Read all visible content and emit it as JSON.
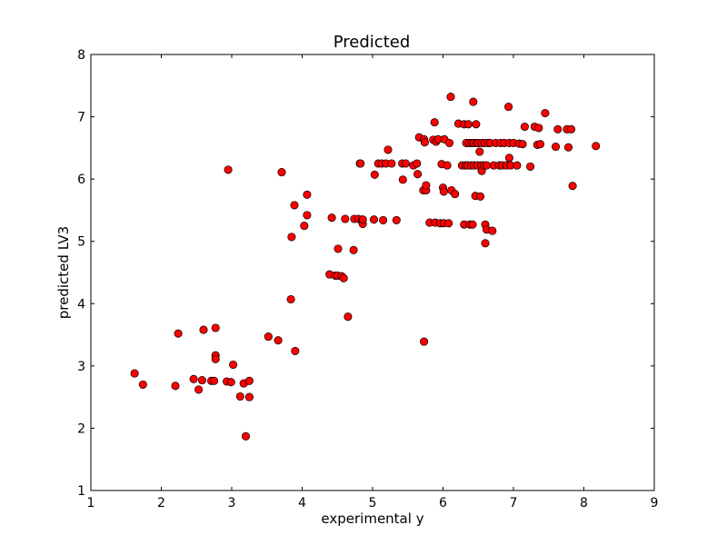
{
  "chart_data": {
    "type": "scatter",
    "title": "Predicted",
    "xlabel": "experimental y",
    "ylabel": "predicted LV3",
    "xlim": [
      1,
      9
    ],
    "ylim": [
      1,
      8
    ],
    "xticks": [
      "1",
      "2",
      "3",
      "4",
      "5",
      "6",
      "7",
      "8",
      "9"
    ],
    "yticks": [
      "1",
      "2",
      "3",
      "4",
      "5",
      "6",
      "7",
      "8"
    ],
    "grid": false,
    "marker_color": "#ff0000",
    "marker_edge": "#000000",
    "series": [
      {
        "points": [
          [
            1.62,
            2.88
          ],
          [
            1.74,
            2.7
          ],
          [
            2.2,
            2.68
          ],
          [
            2.24,
            3.52
          ],
          [
            2.46,
            2.79
          ],
          [
            2.53,
            2.62
          ],
          [
            2.58,
            2.77
          ],
          [
            2.6,
            3.58
          ],
          [
            2.71,
            2.76
          ],
          [
            2.75,
            2.76
          ],
          [
            2.77,
            3.61
          ],
          [
            2.77,
            3.17
          ],
          [
            2.77,
            3.11
          ],
          [
            2.93,
            2.75
          ],
          [
            2.95,
            6.15
          ],
          [
            2.99,
            2.74
          ],
          [
            3.02,
            3.02
          ],
          [
            3.12,
            2.51
          ],
          [
            3.17,
            2.72
          ],
          [
            3.2,
            1.87
          ],
          [
            3.25,
            2.76
          ],
          [
            3.25,
            2.5
          ],
          [
            3.52,
            3.47
          ],
          [
            3.66,
            3.41
          ],
          [
            3.71,
            6.11
          ],
          [
            3.84,
            4.07
          ],
          [
            3.85,
            5.07
          ],
          [
            3.89,
            5.58
          ],
          [
            3.9,
            3.24
          ],
          [
            4.03,
            5.25
          ],
          [
            4.07,
            5.75
          ],
          [
            4.07,
            5.42
          ],
          [
            4.39,
            4.47
          ],
          [
            4.42,
            5.38
          ],
          [
            4.47,
            4.45
          ],
          [
            4.5,
            4.45
          ],
          [
            4.51,
            4.88
          ],
          [
            4.56,
            4.44
          ],
          [
            4.59,
            4.41
          ],
          [
            4.61,
            5.36
          ],
          [
            4.65,
            3.79
          ],
          [
            4.73,
            4.86
          ],
          [
            4.74,
            5.36
          ],
          [
            4.8,
            5.36
          ],
          [
            4.82,
            6.25
          ],
          [
            4.83,
            6.25
          ],
          [
            4.85,
            5.33
          ],
          [
            4.86,
            5.28
          ],
          [
            4.86,
            5.35
          ],
          [
            5.02,
            5.35
          ],
          [
            5.03,
            6.07
          ],
          [
            5.08,
            6.25
          ],
          [
            5.13,
            6.25
          ],
          [
            5.15,
            5.34
          ],
          [
            5.19,
            6.25
          ],
          [
            5.22,
            6.47
          ],
          [
            5.27,
            6.25
          ],
          [
            5.34,
            5.34
          ],
          [
            5.42,
            6.25
          ],
          [
            5.43,
            5.99
          ],
          [
            5.47,
            6.25
          ],
          [
            5.58,
            6.22
          ],
          [
            5.63,
            6.25
          ],
          [
            5.64,
            6.08
          ],
          [
            5.66,
            6.67
          ],
          [
            5.72,
            5.82
          ],
          [
            5.73,
            3.39
          ],
          [
            5.73,
            6.64
          ],
          [
            5.74,
            6.59
          ],
          [
            5.76,
            5.82
          ],
          [
            5.76,
            5.9
          ],
          [
            5.81,
            5.3
          ],
          [
            5.86,
            6.63
          ],
          [
            5.88,
            6.91
          ],
          [
            5.89,
            5.3
          ],
          [
            5.9,
            6.6
          ],
          [
            5.93,
            6.64
          ],
          [
            5.96,
            5.29
          ],
          [
            5.98,
            6.24
          ],
          [
            6.0,
            5.86
          ],
          [
            6.01,
            5.8
          ],
          [
            6.01,
            5.29
          ],
          [
            6.02,
            6.64
          ],
          [
            6.06,
            6.22
          ],
          [
            6.08,
            5.29
          ],
          [
            6.09,
            6.58
          ],
          [
            6.11,
            7.32
          ],
          [
            6.12,
            5.82
          ],
          [
            6.17,
            5.76
          ],
          [
            6.22,
            6.89
          ],
          [
            6.27,
            6.22
          ],
          [
            6.3,
            5.27
          ],
          [
            6.3,
            6.88
          ],
          [
            6.32,
            6.22
          ],
          [
            6.33,
            6.58
          ],
          [
            6.35,
            6.22
          ],
          [
            6.36,
            6.88
          ],
          [
            6.37,
            6.58
          ],
          [
            6.38,
            5.27
          ],
          [
            6.4,
            6.22
          ],
          [
            6.41,
            6.58
          ],
          [
            6.42,
            5.27
          ],
          [
            6.43,
            7.24
          ],
          [
            6.44,
            6.58
          ],
          [
            6.44,
            6.22
          ],
          [
            6.46,
            5.73
          ],
          [
            6.47,
            6.88
          ],
          [
            6.48,
            6.58
          ],
          [
            6.49,
            6.22
          ],
          [
            6.5,
            6.58
          ],
          [
            6.52,
            6.44
          ],
          [
            6.53,
            5.72
          ],
          [
            6.54,
            6.22
          ],
          [
            6.55,
            6.58
          ],
          [
            6.55,
            6.13
          ],
          [
            6.58,
            6.22
          ],
          [
            6.59,
            6.58
          ],
          [
            6.6,
            5.27
          ],
          [
            6.6,
            4.97
          ],
          [
            6.62,
            6.22
          ],
          [
            6.62,
            5.19
          ],
          [
            6.64,
            6.58
          ],
          [
            6.67,
            6.58
          ],
          [
            6.7,
            5.17
          ],
          [
            6.72,
            6.22
          ],
          [
            6.75,
            6.58
          ],
          [
            6.8,
            6.22
          ],
          [
            6.82,
            6.58
          ],
          [
            6.84,
            6.22
          ],
          [
            6.87,
            6.58
          ],
          [
            6.9,
            6.22
          ],
          [
            6.93,
            7.16
          ],
          [
            6.94,
            6.58
          ],
          [
            6.94,
            6.34
          ],
          [
            6.96,
            6.22
          ],
          [
            7.0,
            6.58
          ],
          [
            7.05,
            6.22
          ],
          [
            7.08,
            6.57
          ],
          [
            7.13,
            6.56
          ],
          [
            7.16,
            6.84
          ],
          [
            7.24,
            6.2
          ],
          [
            7.3,
            6.84
          ],
          [
            7.34,
            6.55
          ],
          [
            7.36,
            6.82
          ],
          [
            7.38,
            6.56
          ],
          [
            7.45,
            7.06
          ],
          [
            7.6,
            6.52
          ],
          [
            7.63,
            6.8
          ],
          [
            7.76,
            6.8
          ],
          [
            7.78,
            6.51
          ],
          [
            7.82,
            6.8
          ],
          [
            7.84,
            5.89
          ],
          [
            8.17,
            6.53
          ]
        ]
      }
    ]
  }
}
